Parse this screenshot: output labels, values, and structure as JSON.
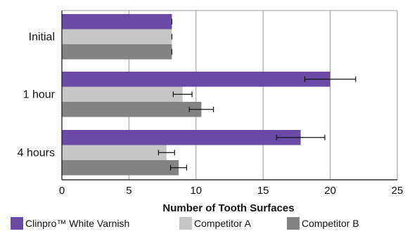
{
  "chart_data": {
    "type": "bar",
    "orientation": "horizontal",
    "title": "",
    "xlabel": "Number of Tooth Surfaces",
    "ylabel": "",
    "xlim": [
      0,
      25
    ],
    "xticks": [
      0,
      5,
      10,
      15,
      20,
      25
    ],
    "grid": true,
    "legend_position": "bottom",
    "categories": [
      "Initial",
      "1 hour",
      "4 hours"
    ],
    "series": [
      {
        "name": "Clinpro™ White Varnish",
        "color": "#6a4aa5",
        "values": [
          8.2,
          20.0,
          17.8
        ],
        "errors": [
          0.0,
          1.9,
          1.8
        ]
      },
      {
        "name": "Competitor A",
        "color": "#c6c6c6",
        "values": [
          8.2,
          9.0,
          7.8
        ],
        "errors": [
          0.0,
          0.7,
          0.6
        ]
      },
      {
        "name": "Competitor B",
        "color": "#838383",
        "values": [
          8.2,
          10.4,
          8.7
        ],
        "errors": [
          0.0,
          0.9,
          0.6
        ]
      }
    ]
  }
}
